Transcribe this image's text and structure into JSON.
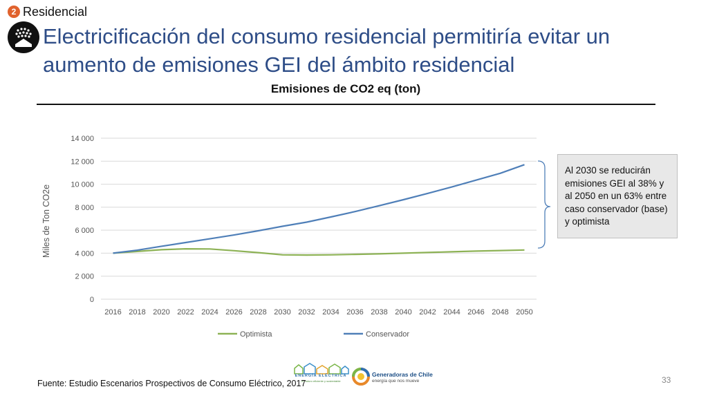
{
  "header": {
    "section_number": "2",
    "section_label": "Residencial",
    "title": "Electricificación del consumo residencial permitiría evitar un aumento de emisiones GEI del ámbito residencial",
    "icon": "house-bulbs-icon"
  },
  "note": {
    "text": "Al 2030 se reducirán emisiones GEI al 38% y al 2050 en un 63% entre caso conservador (base) y optimista"
  },
  "footer": {
    "source": "Fuente: Estudio Escenarios Prospectivos de Consumo Eléctrico, 2017",
    "page_number": "33",
    "logo1_text": "ENERGÍA ELÉCTRICA",
    "logo1_sub": "Un futuro eficiente y sustentable",
    "logo2_name": "Generadoras de Chile",
    "logo2_tagline": "energía que nos mueve"
  },
  "colors": {
    "accent": "#e0622d",
    "title": "#2e4d87",
    "optimista": "#8db255",
    "conservador": "#4f7fb8",
    "bracket": "#4f7fb8"
  },
  "chart_data": {
    "type": "line",
    "title": "Emisiones de CO2 eq (ton)",
    "ylabel": "Miles de Ton CO2e",
    "xlabel": "",
    "ylim": [
      0,
      14000
    ],
    "yticks": [
      0,
      2000,
      4000,
      6000,
      8000,
      10000,
      12000,
      14000
    ],
    "ytick_labels": [
      "0",
      "2 000",
      "4 000",
      "6 000",
      "8 000",
      "10 000",
      "12 000",
      "14 000"
    ],
    "x": [
      2016,
      2018,
      2020,
      2022,
      2024,
      2026,
      2028,
      2030,
      2032,
      2034,
      2036,
      2038,
      2040,
      2042,
      2044,
      2046,
      2048,
      2050
    ],
    "grid": true,
    "legend_position": "bottom",
    "series": [
      {
        "name": "Optimista",
        "color": "#8db255",
        "values": [
          4000,
          4150,
          4300,
          4380,
          4370,
          4220,
          4050,
          3860,
          3840,
          3860,
          3900,
          3940,
          4000,
          4060,
          4120,
          4180,
          4230,
          4280
        ]
      },
      {
        "name": "Conservador",
        "color": "#4f7fb8",
        "values": [
          4000,
          4260,
          4600,
          4930,
          5250,
          5580,
          5950,
          6340,
          6700,
          7150,
          7620,
          8130,
          8650,
          9200,
          9760,
          10350,
          10950,
          11700
        ]
      }
    ]
  }
}
